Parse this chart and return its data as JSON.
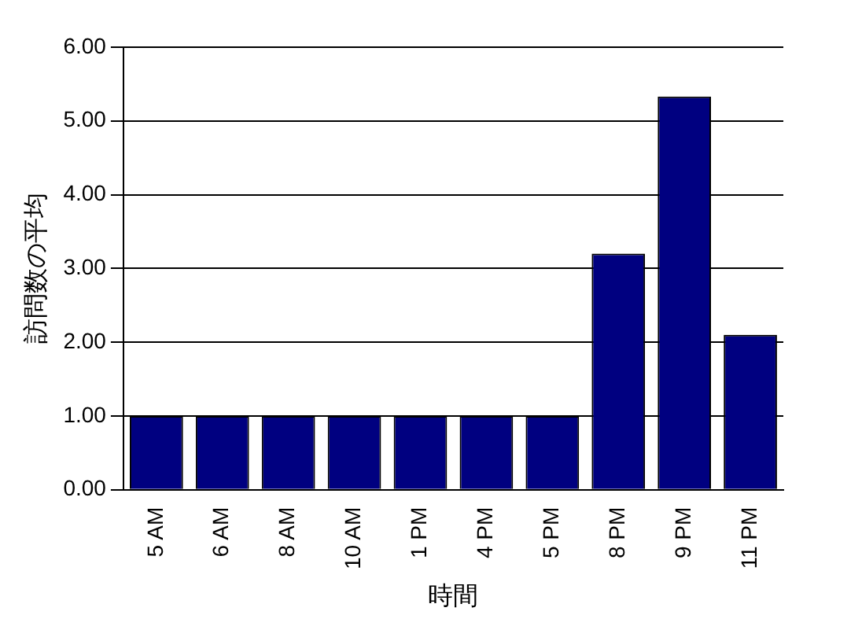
{
  "chart_data": {
    "type": "bar",
    "xlabel": "時間",
    "ylabel": "訪問数の平均",
    "categories": [
      "5 AM",
      "6 AM",
      "8 AM",
      "10 AM",
      "1 PM",
      "4 PM",
      "5 PM",
      "8 PM",
      "9 PM",
      "11 PM"
    ],
    "values": [
      1,
      1,
      1,
      1,
      1,
      1,
      1,
      3.2,
      5.33,
      2.1
    ],
    "color": "#000080",
    "ylim": [
      0,
      6
    ],
    "yticks": [
      {
        "value": 0,
        "label": "0.00"
      },
      {
        "value": 1,
        "label": "1.00"
      },
      {
        "value": 2,
        "label": "2.00"
      },
      {
        "value": 3,
        "label": "3.00"
      },
      {
        "value": 4,
        "label": "4.00"
      },
      {
        "value": 5,
        "label": "5.00"
      },
      {
        "value": 6,
        "label": "6.00"
      }
    ],
    "grid": "y",
    "legend": false
  }
}
